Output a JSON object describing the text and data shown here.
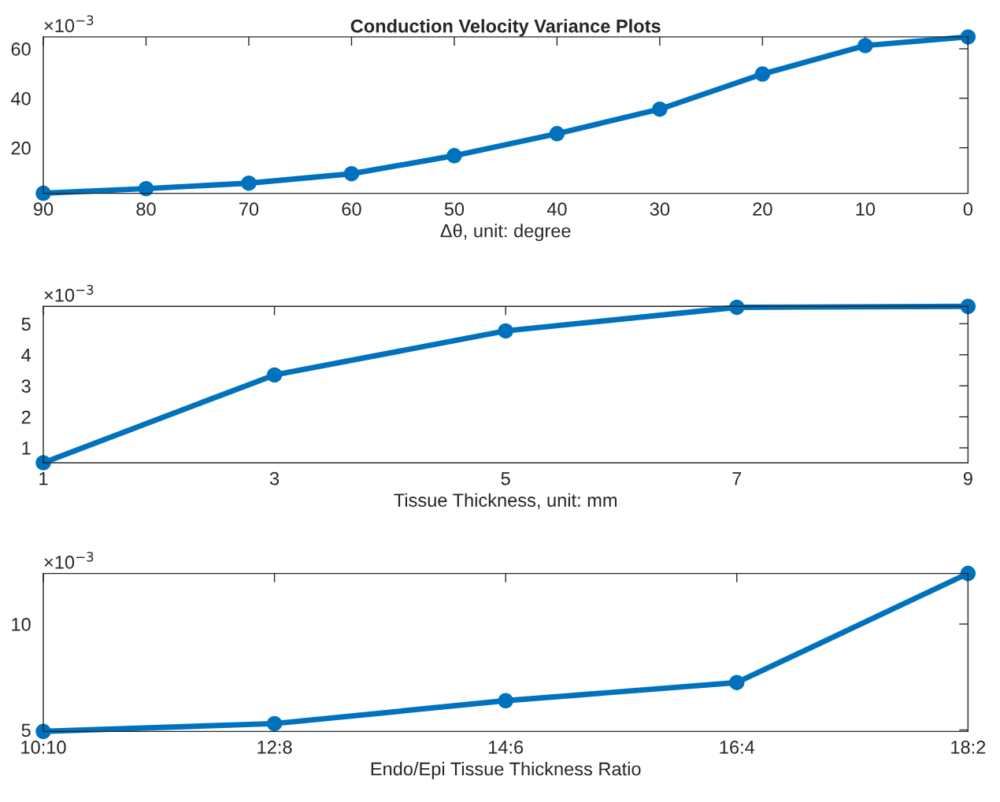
{
  "chart_data": [
    {
      "type": "line",
      "title": "Conduction Velocity Variance Plots",
      "xlabel": "Δθ, unit: degree",
      "annotations": [
        "×10$^{−3}$"
      ],
      "x": [
        90,
        80,
        70,
        60,
        50,
        40,
        30,
        20,
        10,
        0
      ],
      "series": [
        {
          "color": "#0072bd",
          "values": [
            1.6,
            3.5,
            5.7,
            9.5,
            16.8,
            25.7,
            35.6,
            49.8,
            61.3,
            64.8
          ]
        }
      ],
      "xlim": [
        90,
        0
      ],
      "xticks": [
        90,
        80,
        70,
        60,
        50,
        40,
        30,
        20,
        10,
        0
      ],
      "ylim": [
        1.6,
        64.8
      ],
      "yticks": [
        20,
        40,
        60
      ],
      "marker": "circle",
      "line_style": "solid",
      "grid": false
    },
    {
      "type": "line",
      "xlabel": "Tissue Thickness, unit: mm",
      "annotations": [
        "×10$^{−3}$"
      ],
      "x": [
        1,
        3,
        5,
        7,
        9
      ],
      "series": [
        {
          "color": "#0072bd",
          "values": [
            0.52,
            3.35,
            4.77,
            5.53,
            5.56
          ]
        }
      ],
      "xlim": [
        1,
        9
      ],
      "xticks": [
        1,
        3,
        5,
        7,
        9
      ],
      "ylim": [
        0.52,
        5.56
      ],
      "yticks": [
        1,
        2,
        3,
        4,
        5
      ],
      "marker": "circle",
      "line_style": "solid",
      "grid": false
    },
    {
      "type": "line",
      "xlabel": "Endo/Epi Tissue Thickness Ratio",
      "annotations": [
        "×10$^{−3}$"
      ],
      "categories": [
        "10:10",
        "12:8",
        "14:6",
        "16:4",
        "18:2"
      ],
      "series": [
        {
          "color": "#0072bd",
          "values": [
            4.93,
            5.3,
            6.38,
            7.24,
            12.39
          ]
        }
      ],
      "ylim": [
        4.93,
        12.39
      ],
      "yticks": [
        5,
        10
      ],
      "marker": "circle",
      "line_style": "solid",
      "grid": false
    }
  ]
}
